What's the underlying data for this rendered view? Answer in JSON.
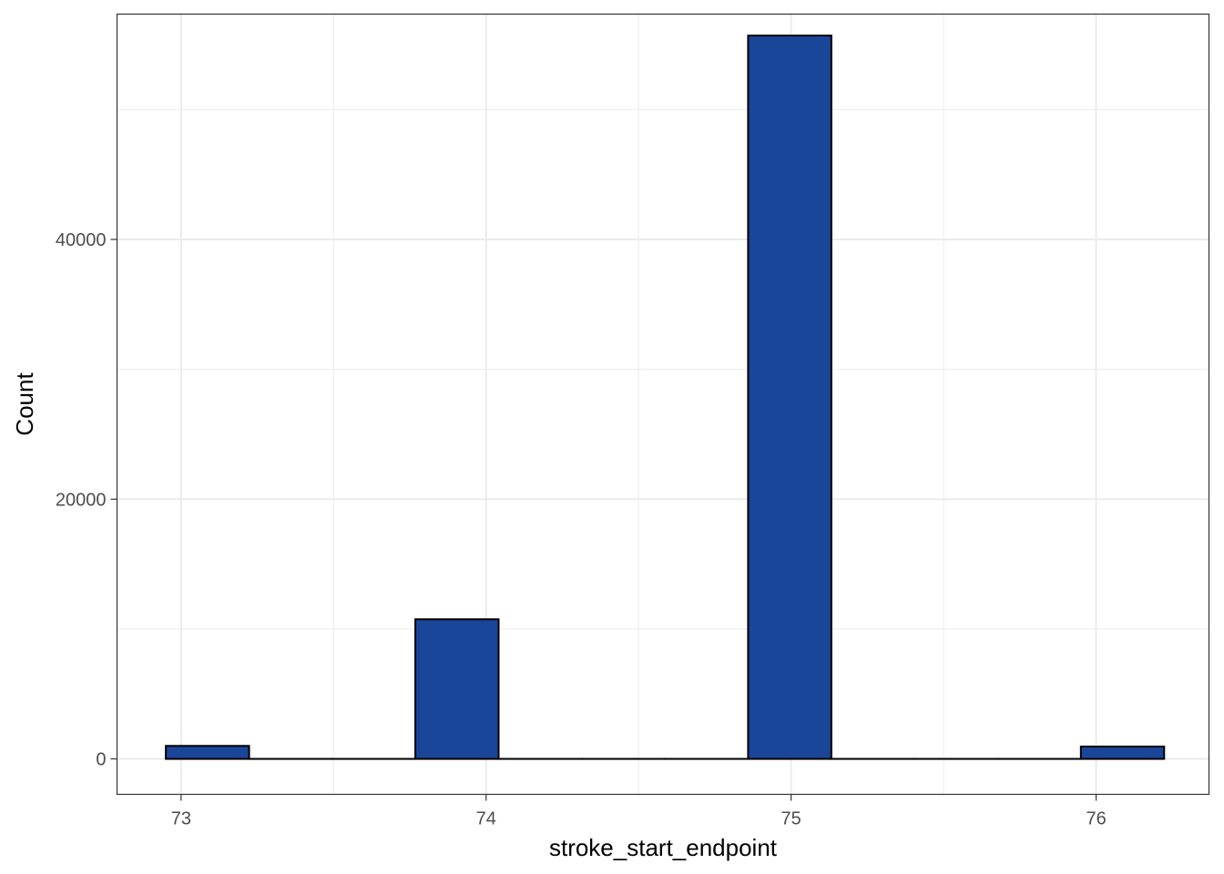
{
  "chart_data": {
    "type": "bar",
    "xlabel": "stroke_start_endpoint",
    "ylabel": "Count",
    "xlim": [
      72.79,
      76.37
    ],
    "ylim": [
      -2730,
      57350
    ],
    "x_ticks": [
      {
        "value": 73,
        "label": "73"
      },
      {
        "value": 74,
        "label": "74"
      },
      {
        "value": 75,
        "label": "75"
      },
      {
        "value": 76,
        "label": "76"
      }
    ],
    "x_minor_grid": [
      73.5,
      74.5,
      75.5
    ],
    "y_ticks": [
      {
        "value": 0,
        "label": "0"
      },
      {
        "value": 20000,
        "label": "20000"
      },
      {
        "value": 40000,
        "label": "40000"
      }
    ],
    "y_minor_grid": [
      10000,
      30000,
      50000
    ],
    "bin_width": 0.273,
    "bins": [
      {
        "start": 72.95,
        "end": 73.223,
        "count": 1000
      },
      {
        "start": 73.223,
        "end": 73.495,
        "count": 0
      },
      {
        "start": 73.495,
        "end": 73.768,
        "count": 0
      },
      {
        "start": 73.768,
        "end": 74.041,
        "count": 10750
      },
      {
        "start": 74.041,
        "end": 74.314,
        "count": 0
      },
      {
        "start": 74.314,
        "end": 74.586,
        "count": 0
      },
      {
        "start": 74.586,
        "end": 74.859,
        "count": 0
      },
      {
        "start": 74.859,
        "end": 75.132,
        "count": 55700
      },
      {
        "start": 75.132,
        "end": 75.405,
        "count": 0
      },
      {
        "start": 75.405,
        "end": 75.677,
        "count": 0
      },
      {
        "start": 75.677,
        "end": 75.95,
        "count": 0
      },
      {
        "start": 75.95,
        "end": 76.223,
        "count": 950
      }
    ],
    "colors": {
      "fill": "#1a4699",
      "outline": "#000000",
      "grid": "#ebebeb",
      "panel_border": "#333333"
    },
    "grid": true,
    "legend": "none"
  }
}
